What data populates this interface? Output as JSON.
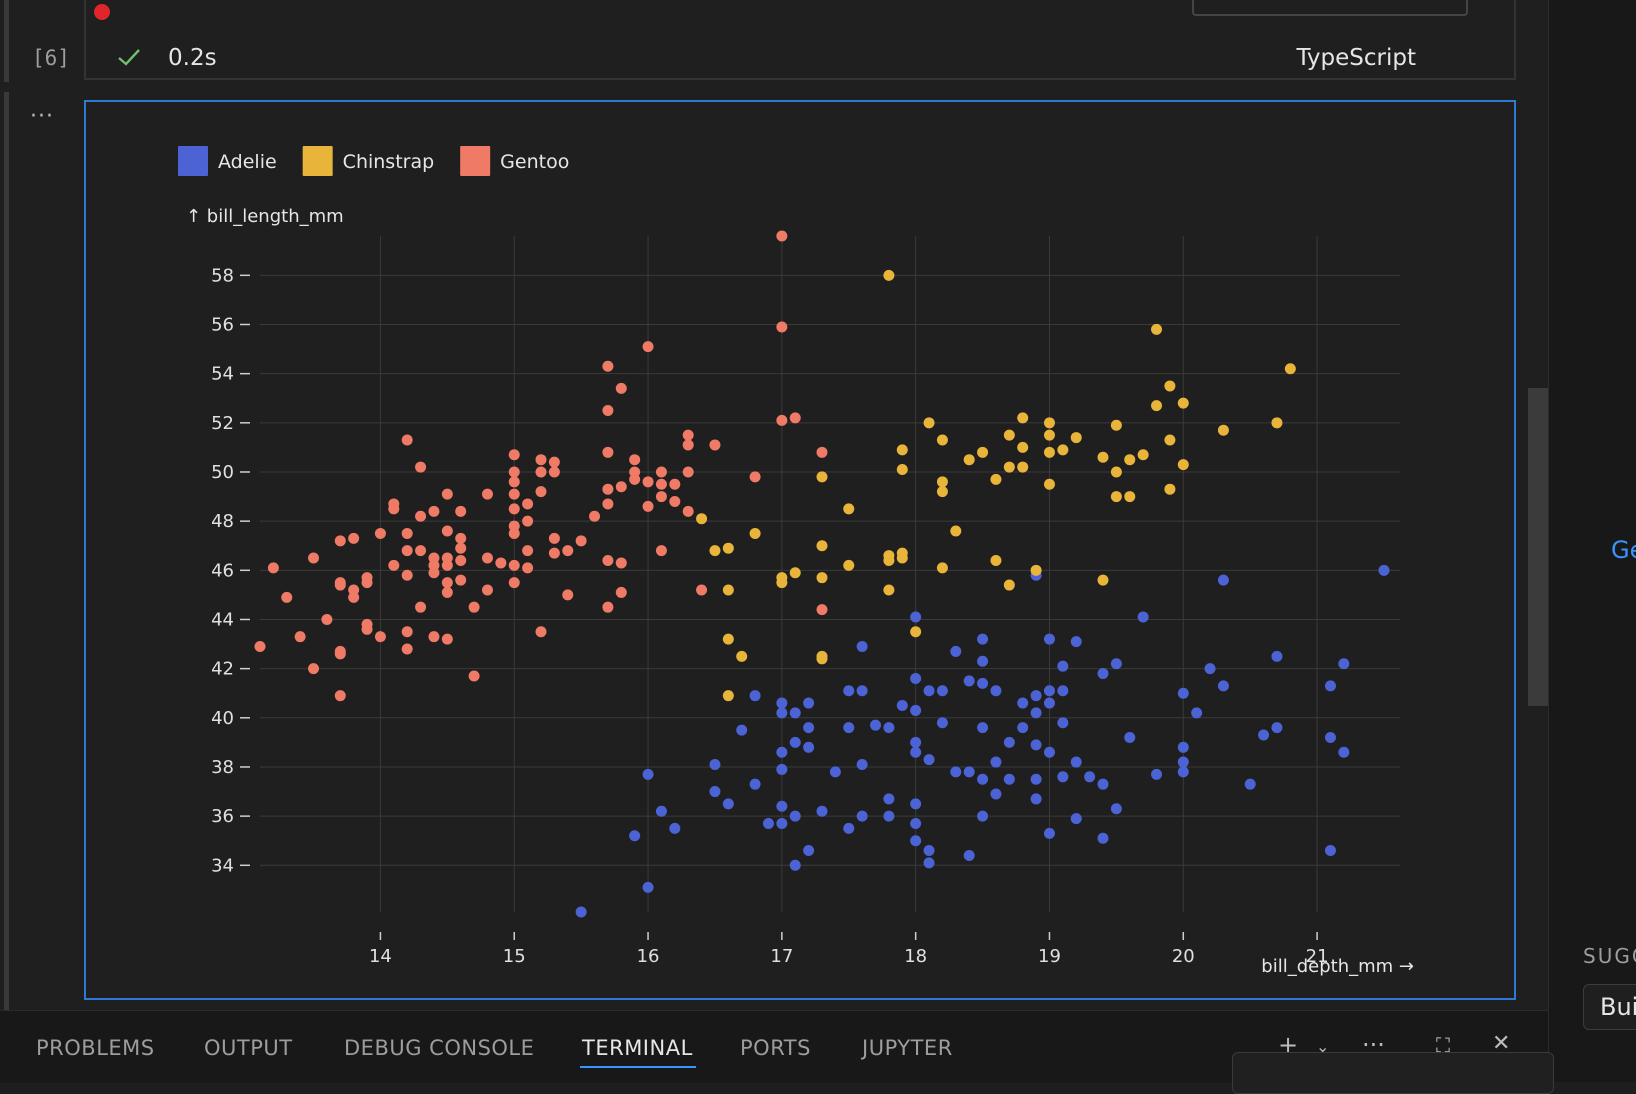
{
  "cell": {
    "execution_count": "[6]",
    "duration": "0.2s",
    "language": "TypeScript",
    "more_actions": "···"
  },
  "colors": {
    "accent": "#2f78d8",
    "background": "#1f1f1f",
    "adelie": "#4c63d6",
    "chinstrap": "#e8b43a",
    "gentoo": "#ef7a65",
    "status_ok": "#6fc06f"
  },
  "icons": {
    "check": "check-icon",
    "add_terminal": "plus-icon",
    "dropdown": "chevron-down-icon",
    "more": "ellipsis-icon",
    "maximize": "maximize-icon",
    "close": "close-icon"
  },
  "right_pane": {
    "link_text": "Ge",
    "section_label": "SUGG",
    "input_text": "Bui"
  },
  "panel": {
    "tabs": [
      "PROBLEMS",
      "OUTPUT",
      "DEBUG CONSOLE",
      "TERMINAL",
      "PORTS",
      "JUPYTER"
    ],
    "active_tab": "TERMINAL"
  },
  "chart_data": {
    "type": "scatter",
    "title": "",
    "xlabel": "bill_depth_mm →",
    "ylabel": "↑ bill_length_mm",
    "xlim": [
      13.1,
      21.5
    ],
    "ylim": [
      32.1,
      59.6
    ],
    "x_ticks": [
      14,
      15,
      16,
      17,
      18,
      19,
      20,
      21
    ],
    "y_ticks": [
      34,
      36,
      38,
      40,
      42,
      44,
      46,
      48,
      50,
      52,
      54,
      56,
      58
    ],
    "grid": true,
    "legend": "top-left",
    "series": [
      {
        "name": "Adelie",
        "color": "#4c63d6",
        "points": [
          [
            15.5,
            32.1
          ],
          [
            16.0,
            33.1
          ],
          [
            17.1,
            34.0
          ],
          [
            18.1,
            34.1
          ],
          [
            18.4,
            34.4
          ],
          [
            17.2,
            34.6
          ],
          [
            18.1,
            34.6
          ],
          [
            21.1,
            34.6
          ],
          [
            18.0,
            35.0
          ],
          [
            19.0,
            35.3
          ],
          [
            15.9,
            35.2
          ],
          [
            16.2,
            35.5
          ],
          [
            17.5,
            35.5
          ],
          [
            19.4,
            35.1
          ],
          [
            16.1,
            36.2
          ],
          [
            16.9,
            35.7
          ],
          [
            17.0,
            35.7
          ],
          [
            17.1,
            36.0
          ],
          [
            17.3,
            36.2
          ],
          [
            17.6,
            36.0
          ],
          [
            17.8,
            36.0
          ],
          [
            18.0,
            35.7
          ],
          [
            18.5,
            36.0
          ],
          [
            18.9,
            36.7
          ],
          [
            19.2,
            35.9
          ],
          [
            19.5,
            36.3
          ],
          [
            16.6,
            36.5
          ],
          [
            16.5,
            37.0
          ],
          [
            16.8,
            37.3
          ],
          [
            17.0,
            36.4
          ],
          [
            17.4,
            37.8
          ],
          [
            17.8,
            36.7
          ],
          [
            18.0,
            36.5
          ],
          [
            18.4,
            37.8
          ],
          [
            18.6,
            36.9
          ],
          [
            18.7,
            37.5
          ],
          [
            18.9,
            37.5
          ],
          [
            19.1,
            37.6
          ],
          [
            19.3,
            37.6
          ],
          [
            19.4,
            37.3
          ],
          [
            20.5,
            37.3
          ],
          [
            16.0,
            37.7
          ],
          [
            16.5,
            38.1
          ],
          [
            17.0,
            37.9
          ],
          [
            17.0,
            38.6
          ],
          [
            17.1,
            39.0
          ],
          [
            17.2,
            38.8
          ],
          [
            17.6,
            38.1
          ],
          [
            18.0,
            38.6
          ],
          [
            18.1,
            38.3
          ],
          [
            18.3,
            37.8
          ],
          [
            18.5,
            37.5
          ],
          [
            18.6,
            38.2
          ],
          [
            18.7,
            39.0
          ],
          [
            18.9,
            38.9
          ],
          [
            19.0,
            38.6
          ],
          [
            19.2,
            38.2
          ],
          [
            19.8,
            37.7
          ],
          [
            20.0,
            38.2
          ],
          [
            20.0,
            37.8
          ],
          [
            20.0,
            38.8
          ],
          [
            21.1,
            39.2
          ],
          [
            21.2,
            38.6
          ],
          [
            16.7,
            39.5
          ],
          [
            17.0,
            40.2
          ],
          [
            17.2,
            39.6
          ],
          [
            17.5,
            39.6
          ],
          [
            17.7,
            39.7
          ],
          [
            17.8,
            39.6
          ],
          [
            18.0,
            39.0
          ],
          [
            18.0,
            40.3
          ],
          [
            18.2,
            39.8
          ],
          [
            18.5,
            39.6
          ],
          [
            18.8,
            39.6
          ],
          [
            18.9,
            40.2
          ],
          [
            19.0,
            40.6
          ],
          [
            19.1,
            39.8
          ],
          [
            19.6,
            39.2
          ],
          [
            20.1,
            40.2
          ],
          [
            20.6,
            39.3
          ],
          [
            20.7,
            39.6
          ],
          [
            16.8,
            40.9
          ],
          [
            17.0,
            40.6
          ],
          [
            17.1,
            40.2
          ],
          [
            17.2,
            40.6
          ],
          [
            17.5,
            41.1
          ],
          [
            17.6,
            41.1
          ],
          [
            17.9,
            40.5
          ],
          [
            18.0,
            41.6
          ],
          [
            18.1,
            41.1
          ],
          [
            18.2,
            41.1
          ],
          [
            18.4,
            41.5
          ],
          [
            18.5,
            41.4
          ],
          [
            18.6,
            41.1
          ],
          [
            18.8,
            40.6
          ],
          [
            18.9,
            40.9
          ],
          [
            19.0,
            41.1
          ],
          [
            19.1,
            41.1
          ],
          [
            20.0,
            41.0
          ],
          [
            20.3,
            41.3
          ],
          [
            20.7,
            42.5
          ],
          [
            21.1,
            41.3
          ],
          [
            17.3,
            42.5
          ],
          [
            17.6,
            42.9
          ],
          [
            18.3,
            42.7
          ],
          [
            18.5,
            42.3
          ],
          [
            19.0,
            43.2
          ],
          [
            19.1,
            42.1
          ],
          [
            19.2,
            43.1
          ],
          [
            19.4,
            41.8
          ],
          [
            19.5,
            42.2
          ],
          [
            20.2,
            42.0
          ],
          [
            21.2,
            42.2
          ],
          [
            18.0,
            44.1
          ],
          [
            18.5,
            43.2
          ],
          [
            18.9,
            45.8
          ],
          [
            19.7,
            44.1
          ],
          [
            20.3,
            45.6
          ],
          [
            21.5,
            46.0
          ]
        ]
      },
      {
        "name": "Chinstrap",
        "color": "#e8b43a",
        "points": [
          [
            16.4,
            48.1
          ],
          [
            16.5,
            46.8
          ],
          [
            16.6,
            46.9
          ],
          [
            16.6,
            45.2
          ],
          [
            16.6,
            43.2
          ],
          [
            16.7,
            42.5
          ],
          [
            16.6,
            40.9
          ],
          [
            16.8,
            47.5
          ],
          [
            17.0,
            45.5
          ],
          [
            17.0,
            45.7
          ],
          [
            17.1,
            45.9
          ],
          [
            17.3,
            49.8
          ],
          [
            17.3,
            47.0
          ],
          [
            17.3,
            45.7
          ],
          [
            17.3,
            42.4
          ],
          [
            17.3,
            42.5
          ],
          [
            17.5,
            46.2
          ],
          [
            17.5,
            48.5
          ],
          [
            17.8,
            58.0
          ],
          [
            17.8,
            46.4
          ],
          [
            17.8,
            46.6
          ],
          [
            17.8,
            45.2
          ],
          [
            17.9,
            46.5
          ],
          [
            17.9,
            46.7
          ],
          [
            17.9,
            50.9
          ],
          [
            17.9,
            50.1
          ],
          [
            18.0,
            43.5
          ],
          [
            18.1,
            52.0
          ],
          [
            18.2,
            51.3
          ],
          [
            18.2,
            49.6
          ],
          [
            18.2,
            49.2
          ],
          [
            18.2,
            46.1
          ],
          [
            18.3,
            47.6
          ],
          [
            18.4,
            50.5
          ],
          [
            18.5,
            50.8
          ],
          [
            18.6,
            49.7
          ],
          [
            18.6,
            46.4
          ],
          [
            18.7,
            51.5
          ],
          [
            18.7,
            50.2
          ],
          [
            18.7,
            45.4
          ],
          [
            18.8,
            51.0
          ],
          [
            18.8,
            50.2
          ],
          [
            18.8,
            52.2
          ],
          [
            18.9,
            46.0
          ],
          [
            19.0,
            51.5
          ],
          [
            19.0,
            50.8
          ],
          [
            19.0,
            52.0
          ],
          [
            19.0,
            49.5
          ],
          [
            19.1,
            50.9
          ],
          [
            19.2,
            51.4
          ],
          [
            19.4,
            50.6
          ],
          [
            19.4,
            45.6
          ],
          [
            19.5,
            51.9
          ],
          [
            19.5,
            50.0
          ],
          [
            19.5,
            49.0
          ],
          [
            19.6,
            49.0
          ],
          [
            19.6,
            50.5
          ],
          [
            19.7,
            50.7
          ],
          [
            19.8,
            55.8
          ],
          [
            19.8,
            52.7
          ],
          [
            19.9,
            53.5
          ],
          [
            19.9,
            51.3
          ],
          [
            19.9,
            49.3
          ],
          [
            20.0,
            52.8
          ],
          [
            20.0,
            50.3
          ],
          [
            20.3,
            51.7
          ],
          [
            20.7,
            52.0
          ],
          [
            20.8,
            54.2
          ]
        ]
      },
      {
        "name": "Gentoo",
        "color": "#ef7a65",
        "points": [
          [
            13.1,
            42.9
          ],
          [
            13.2,
            46.1
          ],
          [
            13.3,
            44.9
          ],
          [
            13.4,
            43.3
          ],
          [
            13.5,
            46.5
          ],
          [
            13.5,
            42.0
          ],
          [
            13.6,
            44.0
          ],
          [
            13.7,
            47.2
          ],
          [
            13.7,
            45.4
          ],
          [
            13.7,
            45.5
          ],
          [
            13.7,
            42.6
          ],
          [
            13.7,
            42.7
          ],
          [
            13.7,
            40.9
          ],
          [
            13.8,
            47.3
          ],
          [
            13.8,
            45.2
          ],
          [
            13.8,
            44.9
          ],
          [
            13.9,
            45.5
          ],
          [
            13.9,
            45.7
          ],
          [
            13.9,
            43.8
          ],
          [
            13.9,
            43.6
          ],
          [
            14.0,
            47.5
          ],
          [
            14.0,
            43.3
          ],
          [
            14.1,
            48.7
          ],
          [
            14.1,
            48.5
          ],
          [
            14.1,
            46.2
          ],
          [
            14.2,
            51.3
          ],
          [
            14.2,
            47.5
          ],
          [
            14.2,
            46.8
          ],
          [
            14.2,
            45.8
          ],
          [
            14.2,
            43.5
          ],
          [
            14.2,
            42.8
          ],
          [
            14.3,
            50.2
          ],
          [
            14.3,
            48.2
          ],
          [
            14.3,
            46.8
          ],
          [
            14.3,
            44.5
          ],
          [
            14.4,
            48.4
          ],
          [
            14.4,
            46.5
          ],
          [
            14.4,
            45.9
          ],
          [
            14.4,
            46.2
          ],
          [
            14.4,
            43.3
          ],
          [
            14.5,
            49.1
          ],
          [
            14.5,
            47.6
          ],
          [
            14.5,
            46.5
          ],
          [
            14.5,
            46.2
          ],
          [
            14.5,
            45.5
          ],
          [
            14.5,
            45.1
          ],
          [
            14.5,
            43.2
          ],
          [
            14.6,
            48.4
          ],
          [
            14.6,
            47.3
          ],
          [
            14.6,
            46.9
          ],
          [
            14.6,
            46.4
          ],
          [
            14.6,
            45.6
          ],
          [
            14.7,
            44.5
          ],
          [
            14.7,
            41.7
          ],
          [
            14.8,
            49.1
          ],
          [
            14.8,
            46.5
          ],
          [
            14.8,
            45.2
          ],
          [
            14.9,
            46.3
          ],
          [
            15.0,
            50.7
          ],
          [
            15.0,
            50.0
          ],
          [
            15.0,
            49.6
          ],
          [
            15.0,
            49.1
          ],
          [
            15.0,
            48.5
          ],
          [
            15.0,
            47.8
          ],
          [
            15.0,
            47.5
          ],
          [
            15.0,
            46.2
          ],
          [
            15.0,
            45.5
          ],
          [
            15.1,
            48.0
          ],
          [
            15.1,
            46.8
          ],
          [
            15.1,
            46.1
          ],
          [
            15.1,
            48.7
          ],
          [
            15.2,
            50.5
          ],
          [
            15.2,
            50.0
          ],
          [
            15.2,
            49.2
          ],
          [
            15.2,
            43.5
          ],
          [
            15.3,
            50.4
          ],
          [
            15.3,
            50.0
          ],
          [
            15.3,
            47.3
          ],
          [
            15.3,
            46.7
          ],
          [
            15.4,
            46.8
          ],
          [
            15.4,
            45.0
          ],
          [
            15.5,
            47.2
          ],
          [
            15.6,
            48.2
          ],
          [
            15.7,
            46.4
          ],
          [
            15.7,
            52.5
          ],
          [
            15.7,
            54.3
          ],
          [
            15.7,
            50.8
          ],
          [
            15.7,
            49.3
          ],
          [
            15.7,
            48.7
          ],
          [
            15.7,
            44.5
          ],
          [
            15.8,
            53.4
          ],
          [
            15.8,
            49.4
          ],
          [
            15.8,
            46.3
          ],
          [
            15.8,
            45.1
          ],
          [
            15.9,
            50.5
          ],
          [
            15.9,
            50.0
          ],
          [
            15.9,
            49.7
          ],
          [
            16.0,
            55.1
          ],
          [
            16.0,
            49.6
          ],
          [
            16.0,
            48.6
          ],
          [
            16.1,
            50.0
          ],
          [
            16.1,
            49.5
          ],
          [
            16.1,
            49.0
          ],
          [
            16.1,
            46.8
          ],
          [
            16.2,
            49.5
          ],
          [
            16.2,
            48.8
          ],
          [
            16.3,
            51.5
          ],
          [
            16.3,
            51.1
          ],
          [
            16.3,
            50.0
          ],
          [
            16.3,
            48.4
          ],
          [
            16.4,
            45.2
          ],
          [
            16.5,
            51.1
          ],
          [
            16.8,
            49.8
          ],
          [
            17.0,
            59.6
          ],
          [
            17.0,
            55.9
          ],
          [
            17.0,
            52.1
          ],
          [
            17.1,
            52.2
          ],
          [
            17.3,
            50.8
          ],
          [
            17.3,
            44.4
          ]
        ]
      }
    ]
  }
}
